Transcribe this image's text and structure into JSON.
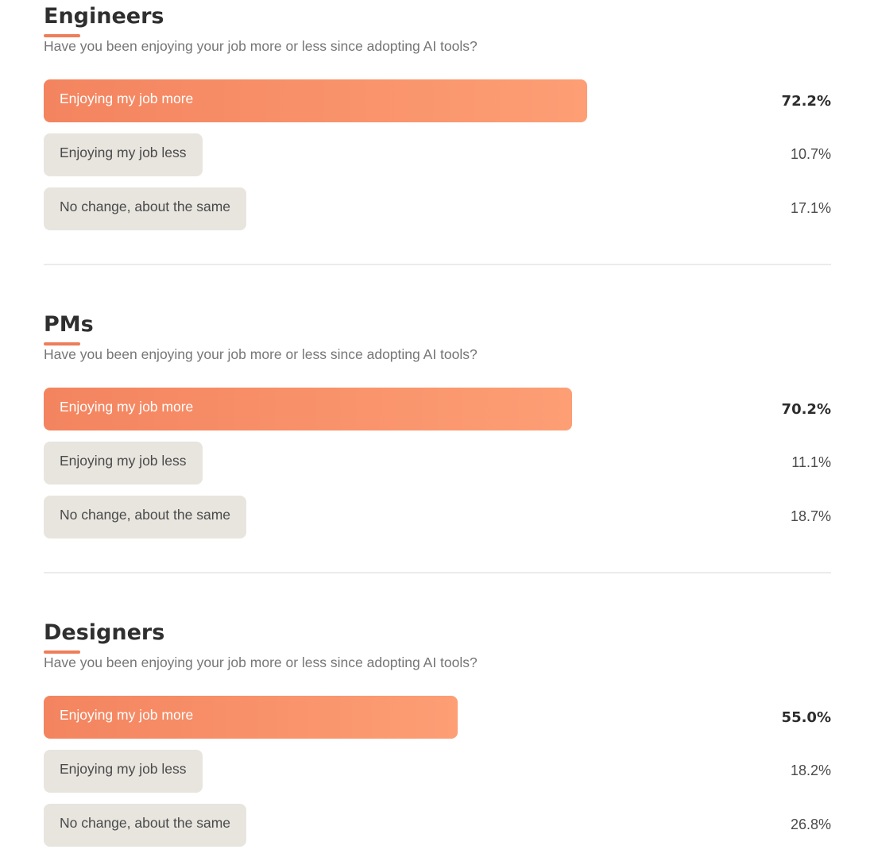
{
  "chart_data": [
    {
      "type": "bar",
      "title": "Engineers",
      "subtitle": "Have you been enjoying your job more or less since adopting AI tools?",
      "categories": [
        "Enjoying my job more",
        "Enjoying my job less",
        "No change, about the same"
      ],
      "values": [
        72.2,
        10.7,
        17.1
      ],
      "labels": [
        "72.2%",
        "10.7%",
        "17.1%"
      ],
      "highlight_index": 0
    },
    {
      "type": "bar",
      "title": "PMs",
      "subtitle": "Have you been enjoying your job more or less since adopting AI tools?",
      "categories": [
        "Enjoying my job more",
        "Enjoying my job less",
        "No change, about the same"
      ],
      "values": [
        70.2,
        11.1,
        18.7
      ],
      "labels": [
        "70.2%",
        "11.1%",
        "18.7%"
      ],
      "highlight_index": 0
    },
    {
      "type": "bar",
      "title": "Designers",
      "subtitle": "Have you been enjoying your job more or less since adopting AI tools?",
      "categories": [
        "Enjoying my job more",
        "Enjoying my job less",
        "No change, about the same"
      ],
      "values": [
        55.0,
        18.2,
        26.8
      ],
      "labels": [
        "55.0%",
        "18.2%",
        "26.8%"
      ],
      "highlight_index": 0
    }
  ],
  "colors": {
    "accent": "#f3845f",
    "accent_light": "#fd9e75",
    "bar_muted": "#e8e5df"
  }
}
